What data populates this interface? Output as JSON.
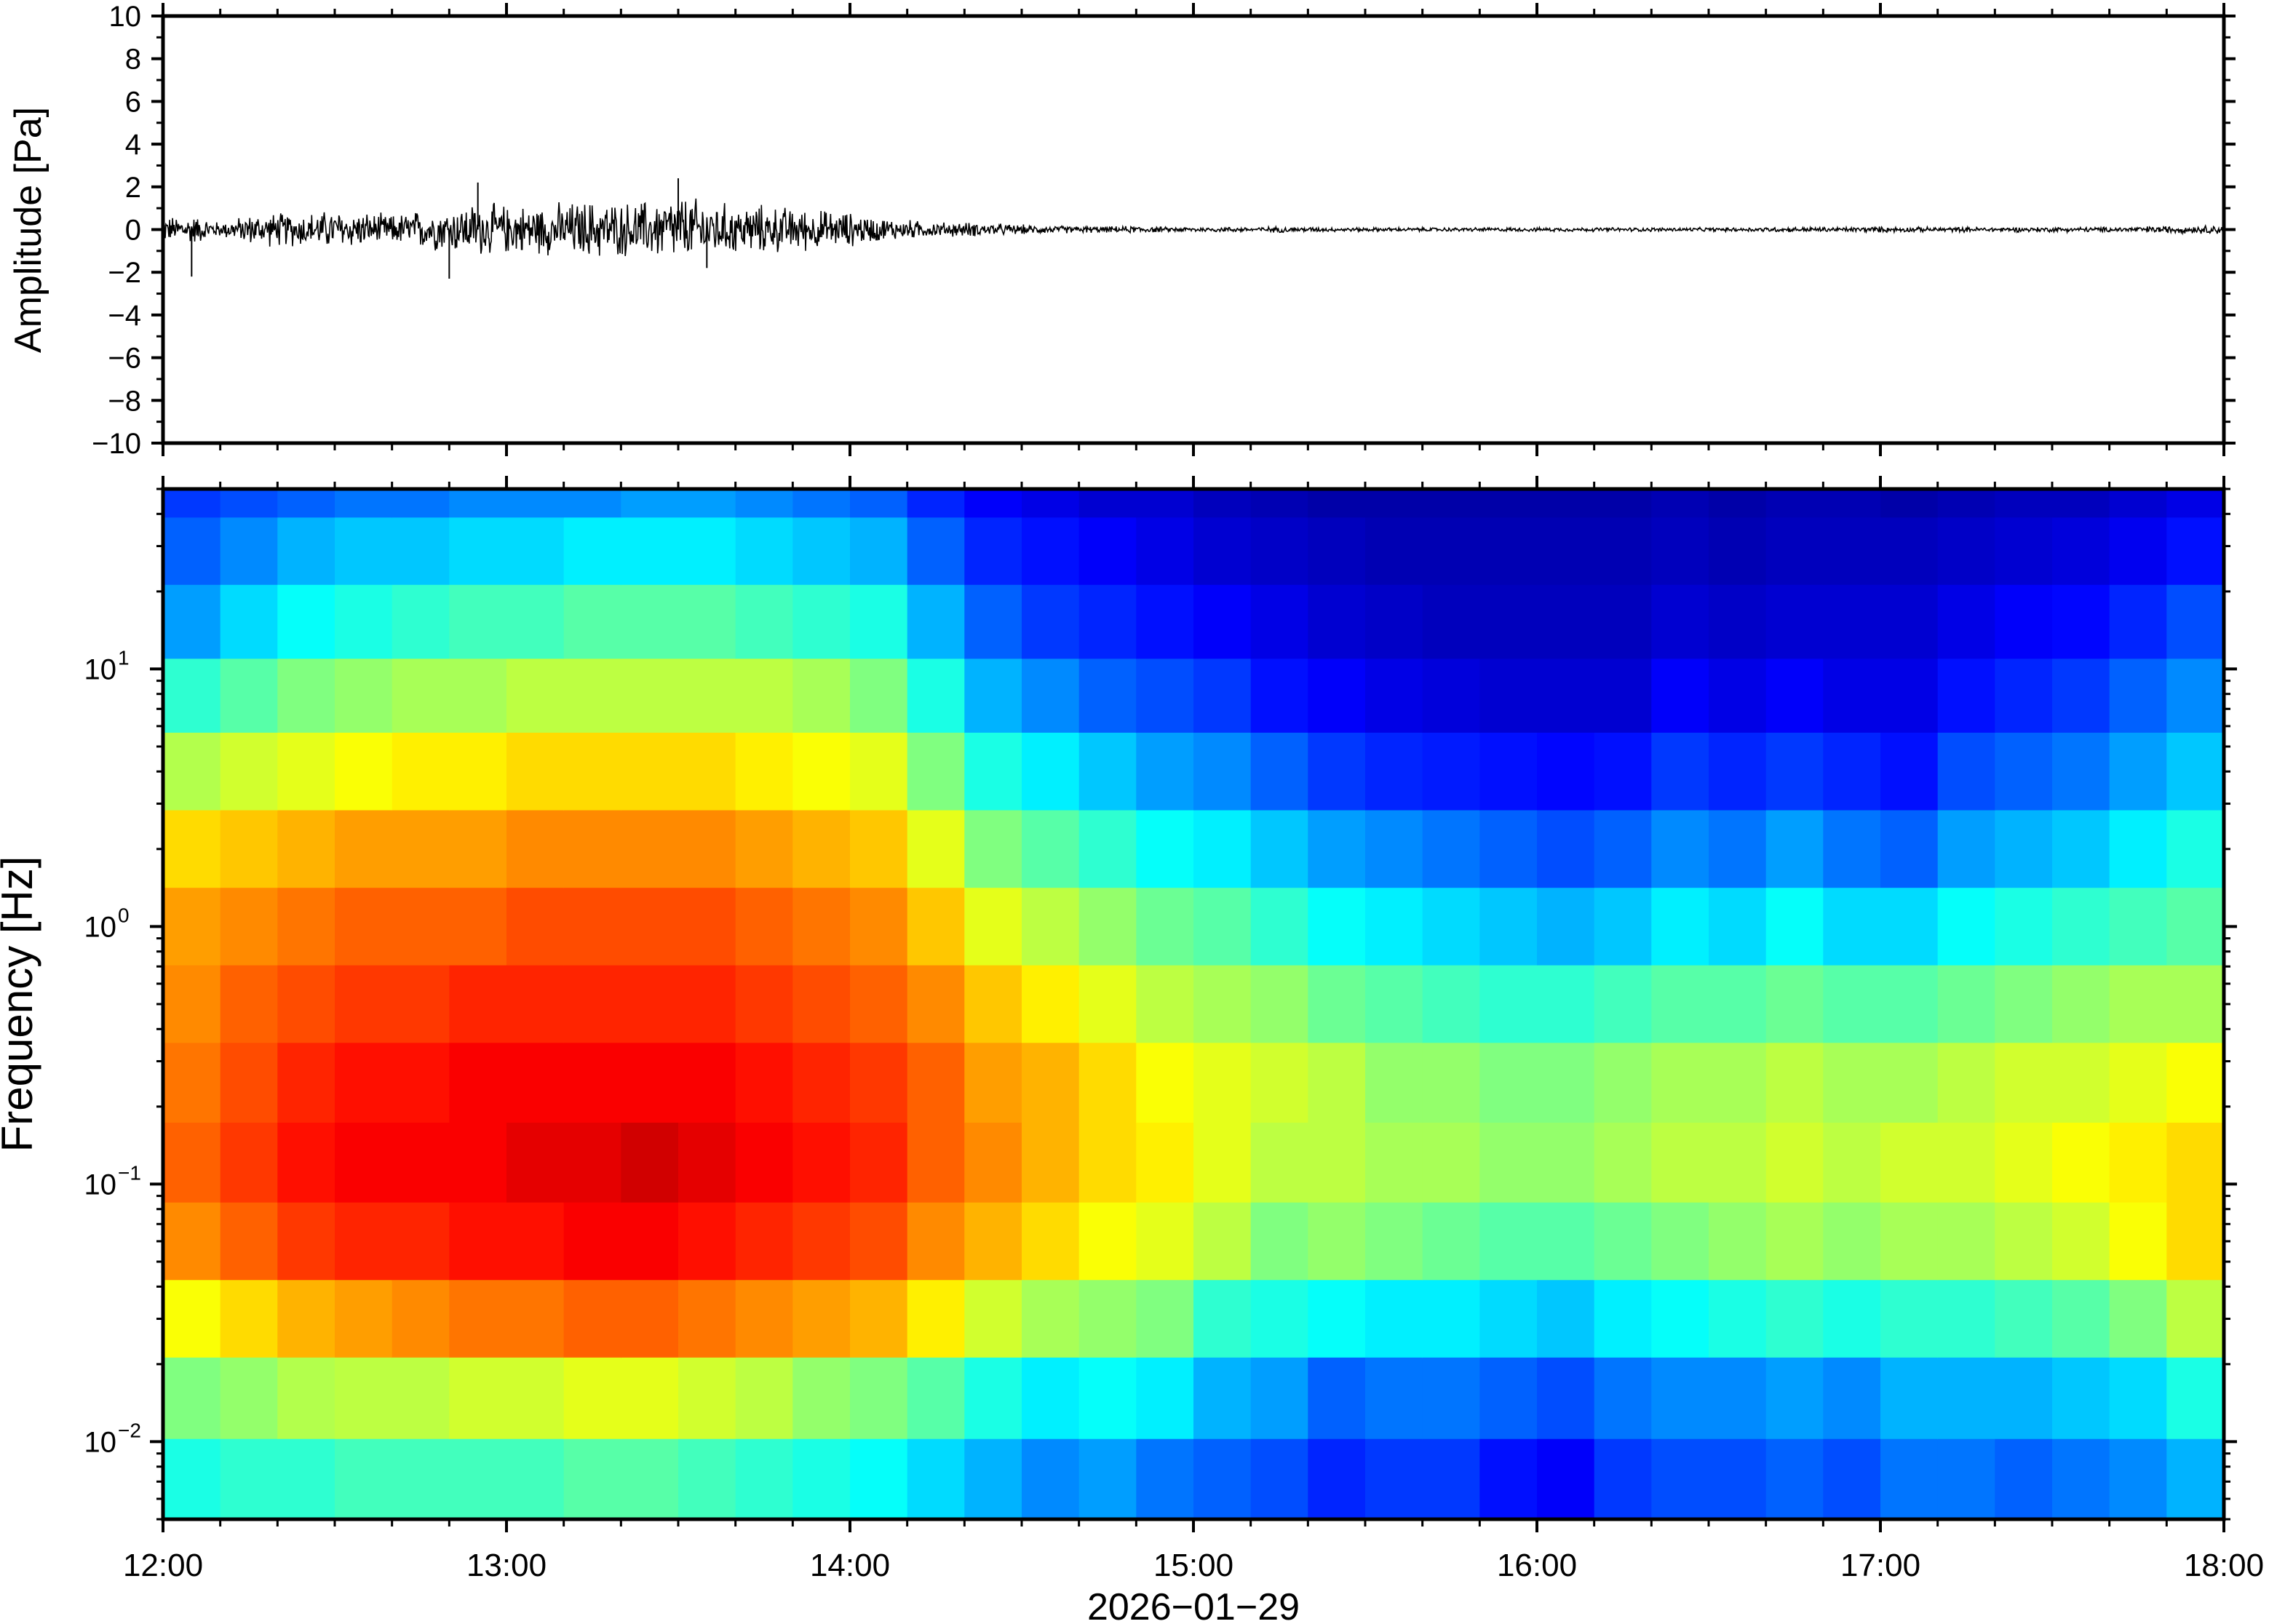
{
  "chart_data": [
    {
      "type": "line",
      "ylabel": "Amplitude [Pa]",
      "ylim": [
        -10,
        10
      ],
      "yticks": [
        -10,
        -8,
        -6,
        -4,
        -2,
        0,
        2,
        4,
        6,
        8,
        10
      ],
      "ytick_labels": [
        "−10",
        "−8",
        "−6",
        "−4",
        "−2",
        "0",
        "2",
        "4",
        "6",
        "8",
        "10"
      ],
      "xlim": [
        "12:00",
        "18:00"
      ],
      "grid": false,
      "series": [
        {
          "color": "#000000",
          "x": [
            "12:00",
            "12:05",
            "12:10",
            "12:15",
            "12:20",
            "12:25",
            "12:30",
            "12:35",
            "12:40",
            "12:45",
            "12:50",
            "12:55",
            "13:00",
            "13:05",
            "13:10",
            "13:15",
            "13:20",
            "13:25",
            "13:30",
            "13:35",
            "13:40",
            "13:45",
            "13:50",
            "13:55",
            "14:00",
            "14:05",
            "14:10",
            "14:15",
            "14:20",
            "14:25",
            "14:30",
            "14:35",
            "14:40",
            "14:45",
            "14:50",
            "14:55",
            "15:00",
            "15:05",
            "15:10",
            "15:15",
            "15:20",
            "15:25",
            "15:30",
            "15:35",
            "15:40",
            "15:45",
            "15:50",
            "15:55",
            "16:00",
            "16:05",
            "16:10",
            "16:15",
            "16:20",
            "16:25",
            "16:30",
            "16:35",
            "16:40",
            "16:45",
            "16:50",
            "16:55",
            "17:00",
            "17:05",
            "17:10",
            "17:15",
            "17:20",
            "17:25",
            "17:30",
            "17:35",
            "17:40",
            "17:45",
            "17:50",
            "17:55",
            "18:00"
          ],
          "envelope_pa": [
            0.5,
            0.6,
            0.3,
            0.6,
            0.7,
            0.7,
            0.8,
            0.7,
            0.6,
            0.8,
            0.9,
            1.1,
            1.0,
            1.0,
            1.1,
            1.2,
            1.1,
            1.2,
            1.4,
            1.2,
            1.0,
            1.0,
            0.9,
            0.8,
            0.7,
            0.5,
            0.4,
            0.3,
            0.3,
            0.25,
            0.2,
            0.15,
            0.15,
            0.12,
            0.15,
            0.1,
            0.1,
            0.1,
            0.1,
            0.12,
            0.1,
            0.08,
            0.08,
            0.08,
            0.08,
            0.08,
            0.08,
            0.08,
            0.08,
            0.08,
            0.08,
            0.08,
            0.08,
            0.08,
            0.08,
            0.08,
            0.1,
            0.1,
            0.1,
            0.1,
            0.12,
            0.1,
            0.1,
            0.1,
            0.1,
            0.1,
            0.1,
            0.1,
            0.1,
            0.12,
            0.15,
            0.15,
            0.2
          ],
          "peaks": [
            {
              "x": "12:05",
              "y": -2.2
            },
            {
              "x": "12:55",
              "y": 2.2
            },
            {
              "x": "12:50",
              "y": -2.3
            },
            {
              "x": "13:30",
              "y": 2.4
            },
            {
              "x": "13:35",
              "y": -1.8
            }
          ]
        }
      ]
    },
    {
      "type": "heatmap",
      "ylabel": "Frequency [Hz]",
      "xlabel": "2026−01−29",
      "yscale": "log",
      "ylim": [
        0.005,
        50
      ],
      "yticks": [
        0.01,
        0.1,
        1,
        10
      ],
      "ytick_labels": [
        {
          "base": "10",
          "exp": "−2"
        },
        {
          "base": "10",
          "exp": "−1"
        },
        {
          "base": "10",
          "exp": "0"
        },
        {
          "base": "10",
          "exp": "1"
        }
      ],
      "xticks": [
        "12:00",
        "13:00",
        "14:00",
        "15:00",
        "16:00",
        "17:00",
        "18:00"
      ],
      "colormap": "jet",
      "x": [
        "12:00",
        "12:10",
        "12:20",
        "12:30",
        "12:40",
        "12:50",
        "13:00",
        "13:10",
        "13:20",
        "13:30",
        "13:40",
        "13:50",
        "14:00",
        "14:10",
        "14:20",
        "14:30",
        "14:40",
        "14:50",
        "15:00",
        "15:10",
        "15:20",
        "15:30",
        "15:40",
        "15:50",
        "16:00",
        "16:10",
        "16:20",
        "16:30",
        "16:40",
        "16:50",
        "17:00",
        "17:10",
        "17:20",
        "17:30",
        "17:40",
        "17:50"
      ],
      "y": [
        50,
        30,
        15,
        8,
        4,
        2,
        1,
        0.5,
        0.25,
        0.12,
        0.06,
        0.03,
        0.015,
        0.007
      ],
      "z_description_units": "relative power 0-1",
      "z": [
        [
          0.18,
          0.22,
          0.28,
          0.42,
          0.55,
          0.66,
          0.72,
          0.74,
          0.76,
          0.78,
          0.74,
          0.62,
          0.5,
          0.4
        ],
        [
          0.2,
          0.26,
          0.34,
          0.46,
          0.58,
          0.68,
          0.74,
          0.78,
          0.8,
          0.82,
          0.78,
          0.66,
          0.52,
          0.42
        ],
        [
          0.22,
          0.3,
          0.38,
          0.5,
          0.6,
          0.7,
          0.76,
          0.8,
          0.84,
          0.86,
          0.82,
          0.7,
          0.55,
          0.42
        ],
        [
          0.24,
          0.32,
          0.4,
          0.52,
          0.62,
          0.72,
          0.78,
          0.82,
          0.86,
          0.88,
          0.84,
          0.72,
          0.56,
          0.44
        ],
        [
          0.24,
          0.32,
          0.42,
          0.54,
          0.64,
          0.72,
          0.78,
          0.82,
          0.86,
          0.88,
          0.84,
          0.74,
          0.56,
          0.44
        ],
        [
          0.26,
          0.34,
          0.44,
          0.54,
          0.64,
          0.72,
          0.78,
          0.84,
          0.88,
          0.88,
          0.86,
          0.76,
          0.58,
          0.44
        ],
        [
          0.26,
          0.34,
          0.44,
          0.56,
          0.66,
          0.74,
          0.8,
          0.84,
          0.88,
          0.9,
          0.86,
          0.76,
          0.58,
          0.44
        ],
        [
          0.26,
          0.36,
          0.46,
          0.56,
          0.66,
          0.74,
          0.8,
          0.84,
          0.88,
          0.9,
          0.88,
          0.78,
          0.6,
          0.46
        ],
        [
          0.28,
          0.36,
          0.46,
          0.56,
          0.66,
          0.74,
          0.8,
          0.84,
          0.88,
          0.92,
          0.88,
          0.78,
          0.6,
          0.46
        ],
        [
          0.28,
          0.36,
          0.46,
          0.56,
          0.66,
          0.74,
          0.8,
          0.84,
          0.88,
          0.9,
          0.86,
          0.76,
          0.58,
          0.44
        ],
        [
          0.26,
          0.34,
          0.44,
          0.56,
          0.64,
          0.72,
          0.78,
          0.82,
          0.86,
          0.88,
          0.84,
          0.74,
          0.56,
          0.42
        ],
        [
          0.24,
          0.32,
          0.42,
          0.54,
          0.62,
          0.7,
          0.76,
          0.8,
          0.84,
          0.86,
          0.82,
          0.72,
          0.52,
          0.4
        ],
        [
          0.22,
          0.3,
          0.4,
          0.5,
          0.6,
          0.68,
          0.74,
          0.78,
          0.82,
          0.84,
          0.8,
          0.7,
          0.5,
          0.38
        ],
        [
          0.16,
          0.22,
          0.3,
          0.4,
          0.5,
          0.6,
          0.68,
          0.74,
          0.78,
          0.78,
          0.74,
          0.64,
          0.46,
          0.34
        ],
        [
          0.12,
          0.16,
          0.22,
          0.3,
          0.4,
          0.5,
          0.6,
          0.68,
          0.72,
          0.74,
          0.7,
          0.58,
          0.4,
          0.3
        ],
        [
          0.1,
          0.14,
          0.18,
          0.26,
          0.36,
          0.46,
          0.56,
          0.64,
          0.7,
          0.7,
          0.66,
          0.54,
          0.36,
          0.26
        ],
        [
          0.08,
          0.12,
          0.16,
          0.22,
          0.32,
          0.42,
          0.52,
          0.6,
          0.66,
          0.66,
          0.62,
          0.52,
          0.38,
          0.28
        ],
        [
          0.08,
          0.1,
          0.14,
          0.2,
          0.28,
          0.38,
          0.48,
          0.56,
          0.62,
          0.64,
          0.6,
          0.5,
          0.36,
          0.24
        ],
        [
          0.06,
          0.08,
          0.12,
          0.18,
          0.26,
          0.36,
          0.46,
          0.54,
          0.6,
          0.6,
          0.56,
          0.42,
          0.3,
          0.22
        ],
        [
          0.05,
          0.07,
          0.1,
          0.14,
          0.22,
          0.32,
          0.42,
          0.52,
          0.58,
          0.56,
          0.5,
          0.4,
          0.28,
          0.2
        ],
        [
          0.04,
          0.06,
          0.08,
          0.12,
          0.18,
          0.28,
          0.38,
          0.48,
          0.56,
          0.56,
          0.52,
          0.38,
          0.22,
          0.16
        ],
        [
          0.04,
          0.05,
          0.07,
          0.1,
          0.16,
          0.26,
          0.36,
          0.46,
          0.52,
          0.54,
          0.5,
          0.36,
          0.24,
          0.18
        ],
        [
          0.04,
          0.05,
          0.06,
          0.09,
          0.15,
          0.24,
          0.34,
          0.44,
          0.52,
          0.54,
          0.48,
          0.36,
          0.24,
          0.18
        ],
        [
          0.04,
          0.05,
          0.06,
          0.08,
          0.14,
          0.22,
          0.32,
          0.42,
          0.5,
          0.52,
          0.46,
          0.34,
          0.22,
          0.14
        ],
        [
          0.04,
          0.05,
          0.06,
          0.08,
          0.13,
          0.2,
          0.3,
          0.42,
          0.5,
          0.52,
          0.46,
          0.32,
          0.2,
          0.12
        ],
        [
          0.04,
          0.05,
          0.06,
          0.08,
          0.14,
          0.22,
          0.32,
          0.44,
          0.52,
          0.54,
          0.48,
          0.36,
          0.24,
          0.18
        ],
        [
          0.05,
          0.06,
          0.08,
          0.12,
          0.18,
          0.26,
          0.36,
          0.46,
          0.54,
          0.56,
          0.5,
          0.38,
          0.26,
          0.2
        ],
        [
          0.04,
          0.05,
          0.07,
          0.1,
          0.16,
          0.24,
          0.34,
          0.46,
          0.54,
          0.56,
          0.52,
          0.4,
          0.26,
          0.2
        ],
        [
          0.05,
          0.06,
          0.08,
          0.12,
          0.18,
          0.28,
          0.38,
          0.48,
          0.56,
          0.58,
          0.54,
          0.42,
          0.28,
          0.22
        ],
        [
          0.05,
          0.06,
          0.08,
          0.1,
          0.16,
          0.24,
          0.34,
          0.46,
          0.54,
          0.56,
          0.52,
          0.4,
          0.26,
          0.2
        ],
        [
          0.04,
          0.06,
          0.08,
          0.1,
          0.14,
          0.22,
          0.34,
          0.46,
          0.54,
          0.58,
          0.54,
          0.42,
          0.3,
          0.24
        ],
        [
          0.05,
          0.07,
          0.1,
          0.14,
          0.2,
          0.28,
          0.38,
          0.48,
          0.56,
          0.58,
          0.54,
          0.42,
          0.3,
          0.24
        ],
        [
          0.06,
          0.08,
          0.12,
          0.16,
          0.22,
          0.3,
          0.4,
          0.5,
          0.58,
          0.6,
          0.56,
          0.44,
          0.3,
          0.22
        ],
        [
          0.06,
          0.09,
          0.13,
          0.18,
          0.24,
          0.32,
          0.42,
          0.52,
          0.58,
          0.62,
          0.58,
          0.46,
          0.32,
          0.24
        ],
        [
          0.08,
          0.11,
          0.16,
          0.22,
          0.28,
          0.36,
          0.44,
          0.54,
          0.6,
          0.64,
          0.62,
          0.5,
          0.34,
          0.26
        ],
        [
          0.1,
          0.14,
          0.2,
          0.26,
          0.32,
          0.4,
          0.46,
          0.54,
          0.62,
          0.66,
          0.66,
          0.56,
          0.4,
          0.3
        ]
      ]
    }
  ]
}
